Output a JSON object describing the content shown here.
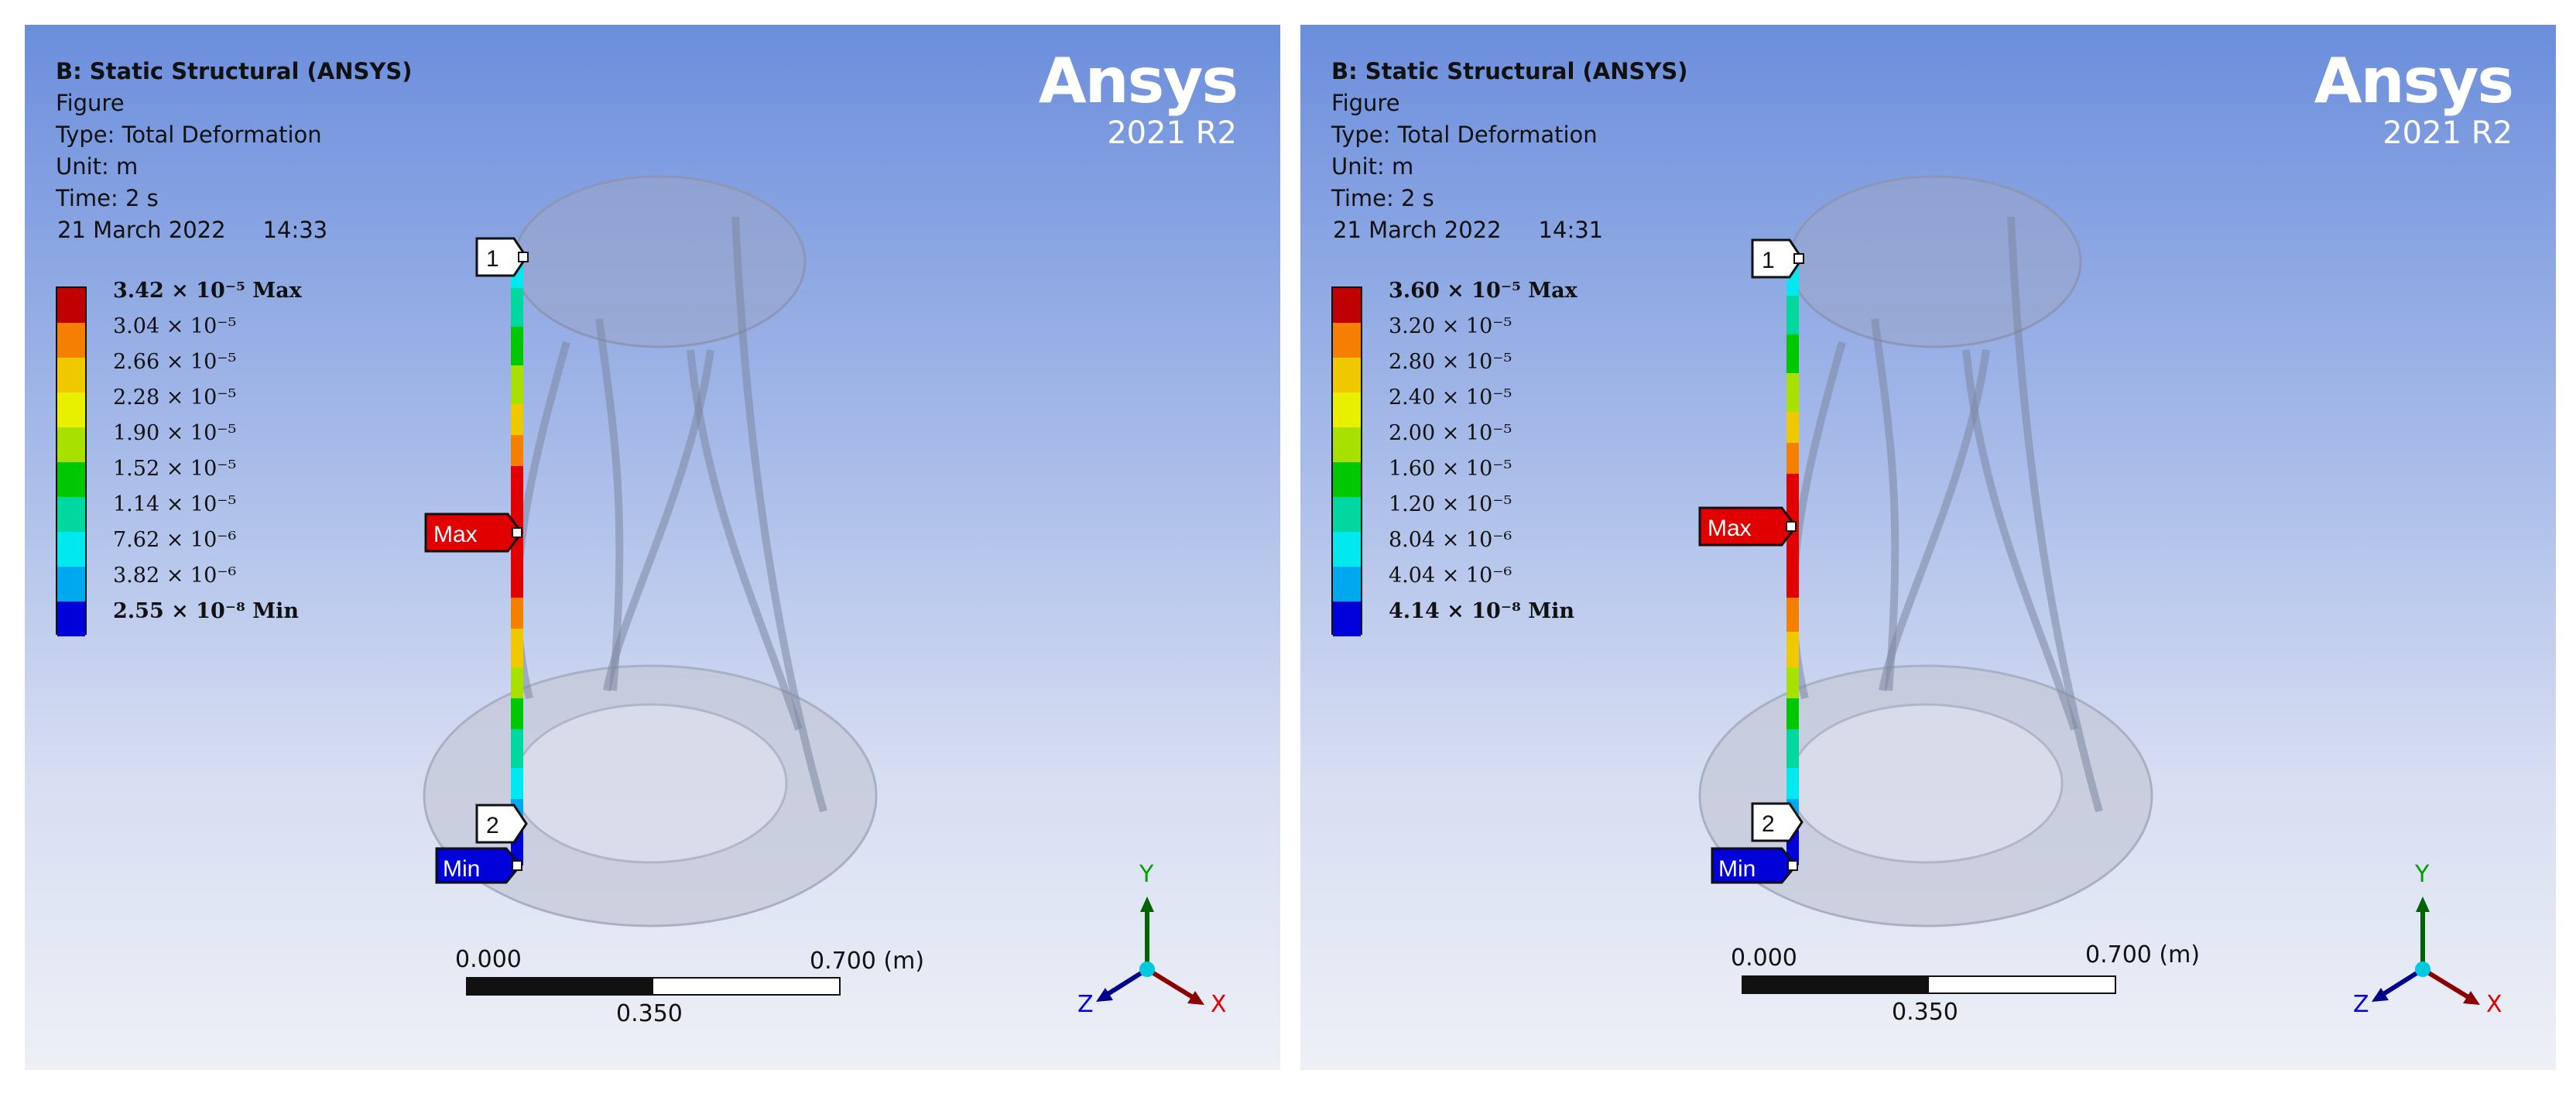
{
  "panels": [
    {
      "title": "B: Static Structural (ANSYS)",
      "subtitle": "Figure",
      "type": "Type: Total Deformation",
      "unit": "Unit: m",
      "time": "Time: 2 s",
      "date": "21 March 2022",
      "clock": "14:33",
      "brand": "Ansys",
      "version": "2021 R2",
      "legend": [
        {
          "label": "3.42 × 10⁻⁵ Max",
          "color": "#c00000",
          "bold": true
        },
        {
          "label": "3.04 × 10⁻⁵",
          "color": "#f57f00"
        },
        {
          "label": "2.66 × 10⁻⁵",
          "color": "#f0c800"
        },
        {
          "label": "2.28 × 10⁻⁵",
          "color": "#e8f000"
        },
        {
          "label": "1.90 × 10⁻⁵",
          "color": "#a8e000"
        },
        {
          "label": "1.52 × 10⁻⁵",
          "color": "#00c800"
        },
        {
          "label": "1.14 × 10⁻⁵",
          "color": "#00d8a0"
        },
        {
          "label": "7.62 × 10⁻⁶",
          "color": "#00e8f0"
        },
        {
          "label": "3.82 × 10⁻⁶",
          "color": "#00a8f0"
        },
        {
          "label": "2.55 × 10⁻⁸ Min",
          "color": "#0000d8",
          "bold": true
        }
      ],
      "probes": {
        "p1": "1",
        "p2": "2",
        "max": "Max",
        "min": "Min"
      },
      "scale": {
        "start": "0.000",
        "end": "0.700 (m)",
        "mid": "0.350"
      },
      "axes": {
        "x": "X",
        "y": "Y",
        "z": "Z"
      }
    },
    {
      "title": "B: Static Structural (ANSYS)",
      "subtitle": "Figure",
      "type": "Type: Total Deformation",
      "unit": "Unit: m",
      "time": "Time: 2 s",
      "date": "21 March 2022",
      "clock": "14:31",
      "brand": "Ansys",
      "version": "2021 R2",
      "legend": [
        {
          "label": "3.60 × 10⁻⁵ Max",
          "color": "#c00000",
          "bold": true
        },
        {
          "label": "3.20 × 10⁻⁵",
          "color": "#f57f00"
        },
        {
          "label": "2.80 × 10⁻⁵",
          "color": "#f0c800"
        },
        {
          "label": "2.40 × 10⁻⁵",
          "color": "#e8f000"
        },
        {
          "label": "2.00 × 10⁻⁵",
          "color": "#a8e000"
        },
        {
          "label": "1.60 × 10⁻⁵",
          "color": "#00c800"
        },
        {
          "label": "1.20 × 10⁻⁵",
          "color": "#00d8a0"
        },
        {
          "label": "8.04 × 10⁻⁶",
          "color": "#00e8f0"
        },
        {
          "label": "4.04 × 10⁻⁶",
          "color": "#00a8f0"
        },
        {
          "label": "4.14 × 10⁻⁸ Min",
          "color": "#0000d8",
          "bold": true
        }
      ],
      "probes": {
        "p1": "1",
        "p2": "2",
        "max": "Max",
        "min": "Min"
      },
      "scale": {
        "start": "0.000",
        "end": "0.700 (m)",
        "mid": "0.350"
      },
      "axes": {
        "x": "X",
        "y": "Y",
        "z": "Z"
      }
    }
  ]
}
